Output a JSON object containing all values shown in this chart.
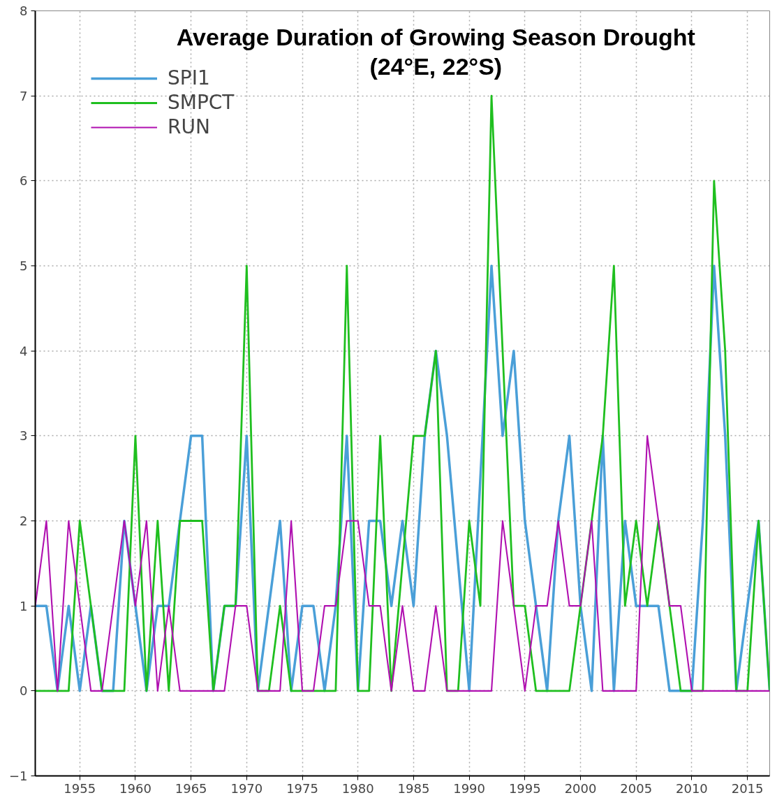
{
  "chart_data": {
    "type": "line",
    "title": "Average Duration of Growing Season Drought\n(24°E, 22°S)",
    "x": [
      1951,
      1952,
      1953,
      1954,
      1955,
      1956,
      1957,
      1958,
      1959,
      1960,
      1961,
      1962,
      1963,
      1964,
      1965,
      1966,
      1967,
      1968,
      1969,
      1970,
      1971,
      1972,
      1973,
      1974,
      1975,
      1976,
      1977,
      1978,
      1979,
      1980,
      1981,
      1982,
      1983,
      1984,
      1985,
      1986,
      1987,
      1988,
      1989,
      1990,
      1991,
      1992,
      1993,
      1994,
      1995,
      1996,
      1997,
      1998,
      1999,
      2000,
      2001,
      2002,
      2003,
      2004,
      2005,
      2006,
      2007,
      2008,
      2009,
      2010,
      2011,
      2012,
      2013,
      2014,
      2015,
      2016,
      2017
    ],
    "series": [
      {
        "name": "SPI1",
        "color": "#4a9fd8",
        "values": [
          1,
          1,
          0,
          1,
          0,
          1,
          0,
          0,
          2,
          1,
          0,
          1,
          1,
          2,
          3,
          3,
          0,
          1,
          1,
          3,
          0,
          1,
          2,
          0,
          1,
          1,
          0,
          1,
          3,
          0,
          2,
          2,
          1,
          2,
          1,
          3,
          4,
          3,
          1.5,
          0,
          2.5,
          5,
          3,
          4,
          2,
          1,
          0,
          2,
          3,
          1,
          0,
          3,
          0,
          2,
          1,
          1,
          1,
          0,
          0,
          0,
          2,
          5,
          3,
          0,
          1,
          2,
          0
        ]
      },
      {
        "name": "SMPCT",
        "color": "#1fbf1f",
        "values": [
          0,
          0,
          0,
          0,
          2,
          1,
          0,
          0,
          0,
          3,
          0,
          2,
          0,
          2,
          2,
          2,
          0,
          1,
          1,
          5,
          0,
          0,
          1,
          0,
          0,
          0,
          0,
          0,
          5,
          0,
          0,
          3,
          0,
          1.5,
          3,
          3,
          4,
          0,
          0,
          2,
          1,
          7,
          4,
          1,
          1,
          0,
          0,
          0,
          0,
          1,
          2,
          3,
          5,
          1,
          2,
          1,
          2,
          1,
          0,
          0,
          0,
          6,
          4,
          0,
          0,
          2,
          0
        ]
      },
      {
        "name": "RUN",
        "color": "#b010b0",
        "values": [
          1,
          2,
          0,
          2,
          1,
          0,
          0,
          1,
          2,
          1,
          2,
          0,
          1,
          0,
          0,
          0,
          0,
          0,
          1,
          1,
          0,
          0,
          0,
          2,
          0,
          0,
          1,
          1,
          2,
          2,
          1,
          1,
          0,
          1,
          0,
          0,
          1,
          0,
          0,
          0,
          0,
          0,
          2,
          1,
          0,
          1,
          1,
          2,
          1,
          1,
          2,
          0,
          0,
          0,
          0,
          3,
          2,
          1,
          1,
          0,
          0,
          0,
          0,
          0,
          0,
          0,
          0
        ]
      }
    ],
    "xlim": [
      1951,
      2017
    ],
    "ylim": [
      -1,
      8
    ],
    "xticks": [
      1955,
      1960,
      1965,
      1970,
      1975,
      1980,
      1985,
      1990,
      1995,
      2000,
      2005,
      2010,
      2015
    ],
    "yticks": [
      -1,
      0,
      1,
      2,
      3,
      4,
      5,
      6,
      7,
      8
    ],
    "grid": true,
    "legend": "top left",
    "line_style": "solid",
    "marker": "none"
  }
}
